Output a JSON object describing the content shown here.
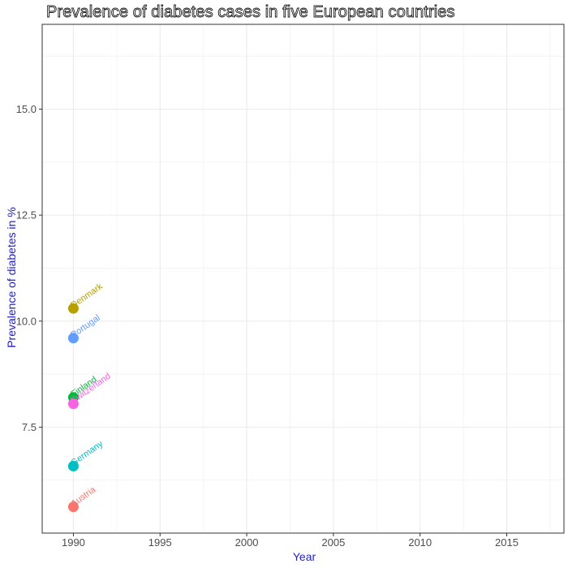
{
  "chart_data": {
    "type": "scatter",
    "title": "Prevalence of diabetes cases in five European countries",
    "xlabel": "Year",
    "ylabel": "Prevalence of diabetes in %",
    "xlim": [
      1988.2,
      2018.3
    ],
    "ylim": [
      5.0,
      17.0
    ],
    "x_ticks": [
      1990,
      1995,
      2000,
      2005,
      2010,
      2015
    ],
    "y_ticks": [
      7.5,
      10.0,
      12.5,
      15.0
    ],
    "y_tick_labels": [
      "7.5",
      "10.0",
      "12.5",
      "15.0"
    ],
    "x_tick_labels": [
      "1990",
      "1995",
      "2000",
      "2005",
      "2010",
      "2015"
    ],
    "grid": true,
    "series": [
      {
        "name": "Austria",
        "display_label": "Austria",
        "x": [
          1990
        ],
        "y": [
          5.62
        ],
        "color": "#F8766D"
      },
      {
        "name": "Denmark",
        "display_label": "Denmark",
        "x": [
          1990
        ],
        "y": [
          10.3
        ],
        "color": "#B79F00"
      },
      {
        "name": "Finland",
        "display_label": "Finland",
        "x": [
          1990
        ],
        "y": [
          8.2
        ],
        "color": "#00BA38"
      },
      {
        "name": "Germany",
        "display_label": "Germany",
        "x": [
          1990
        ],
        "y": [
          6.58
        ],
        "color": "#00BFC4"
      },
      {
        "name": "Portugal",
        "display_label": "Portugal",
        "x": [
          1990
        ],
        "y": [
          9.6
        ],
        "color": "#619CFF"
      },
      {
        "name": "Switzerland",
        "display_label": "Switzerland",
        "x": [
          1990
        ],
        "y": [
          8.05
        ],
        "color": "#F564E3"
      }
    ]
  }
}
